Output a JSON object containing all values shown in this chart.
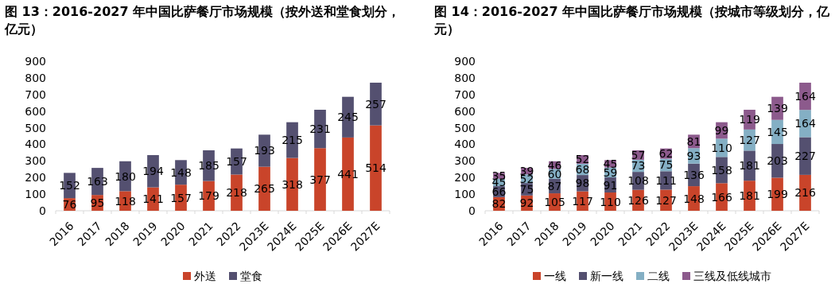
{
  "chart_data": [
    {
      "type": "bar",
      "title": "图 13：2016-2027 年中国比萨餐厅市场规模（按外送和堂食划分，亿元）",
      "categories": [
        "2016",
        "2017",
        "2018",
        "2019",
        "2020",
        "2021",
        "2022",
        "2023E",
        "2024E",
        "2025E",
        "2026E",
        "2027E"
      ],
      "stacked": true,
      "data_labels": true,
      "legend": "bottom",
      "ylim": [
        0,
        900
      ],
      "yticks": [
        0,
        100,
        200,
        300,
        400,
        500,
        600,
        700,
        800,
        900
      ],
      "series": [
        {
          "name": "外送",
          "color": "#c9442a",
          "values": [
            76,
            95,
            118,
            141,
            157,
            179,
            218,
            265,
            318,
            377,
            441,
            514
          ]
        },
        {
          "name": "堂食",
          "color": "#545070",
          "values": [
            152,
            163,
            180,
            194,
            148,
            185,
            157,
            193,
            215,
            231,
            245,
            257
          ]
        }
      ]
    },
    {
      "type": "bar",
      "title": "图 14：2016-2027 年中国比萨餐厅市场规模（按城市等级划分，亿元）",
      "categories": [
        "2016",
        "2017",
        "2018",
        "2019",
        "2020",
        "2021",
        "2022",
        "2023E",
        "2024E",
        "2025E",
        "2026E",
        "2027E"
      ],
      "stacked": true,
      "data_labels": true,
      "legend": "bottom",
      "ylim": [
        0,
        900
      ],
      "yticks": [
        0,
        100,
        200,
        300,
        400,
        500,
        600,
        700,
        800,
        900
      ],
      "series": [
        {
          "name": "一线",
          "color": "#c9442a",
          "values": [
            82,
            92,
            105,
            117,
            110,
            126,
            127,
            148,
            166,
            181,
            199,
            216
          ]
        },
        {
          "name": "新一线",
          "color": "#545070",
          "values": [
            66,
            75,
            87,
            98,
            91,
            108,
            111,
            136,
            158,
            181,
            203,
            227
          ]
        },
        {
          "name": "二线",
          "color": "#84afc4",
          "values": [
            45,
            52,
            60,
            68,
            59,
            73,
            75,
            93,
            110,
            127,
            145,
            164
          ]
        },
        {
          "name": "三线及低线城市",
          "color": "#8c5a8c",
          "values": [
            35,
            39,
            46,
            52,
            45,
            57,
            62,
            81,
            99,
            119,
            139,
            164
          ]
        }
      ]
    }
  ]
}
